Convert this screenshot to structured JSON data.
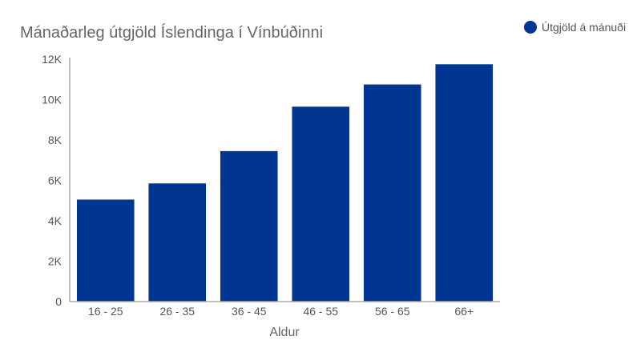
{
  "chart_data": {
    "type": "bar",
    "title": "Mánaðarleg útgjöld Íslendinga í Vínbúðinni",
    "xlabel": "Aldur",
    "ylabel": "",
    "categories": [
      "16 - 25",
      "26 - 35",
      "36 - 45",
      "46 - 55",
      "56 - 65",
      "66+"
    ],
    "series": [
      {
        "name": "Útgjöld á mánuði",
        "values": [
          5050,
          5850,
          7450,
          9650,
          10750,
          11750
        ],
        "color": "#003591"
      }
    ],
    "ylim": [
      0,
      12000
    ],
    "yticks": [
      0,
      2000,
      4000,
      6000,
      8000,
      10000,
      12000
    ],
    "ytick_labels": [
      "0",
      "2K",
      "4K",
      "6K",
      "8K",
      "10K",
      "12K"
    ],
    "grid": false,
    "legend_position": "top-right"
  }
}
